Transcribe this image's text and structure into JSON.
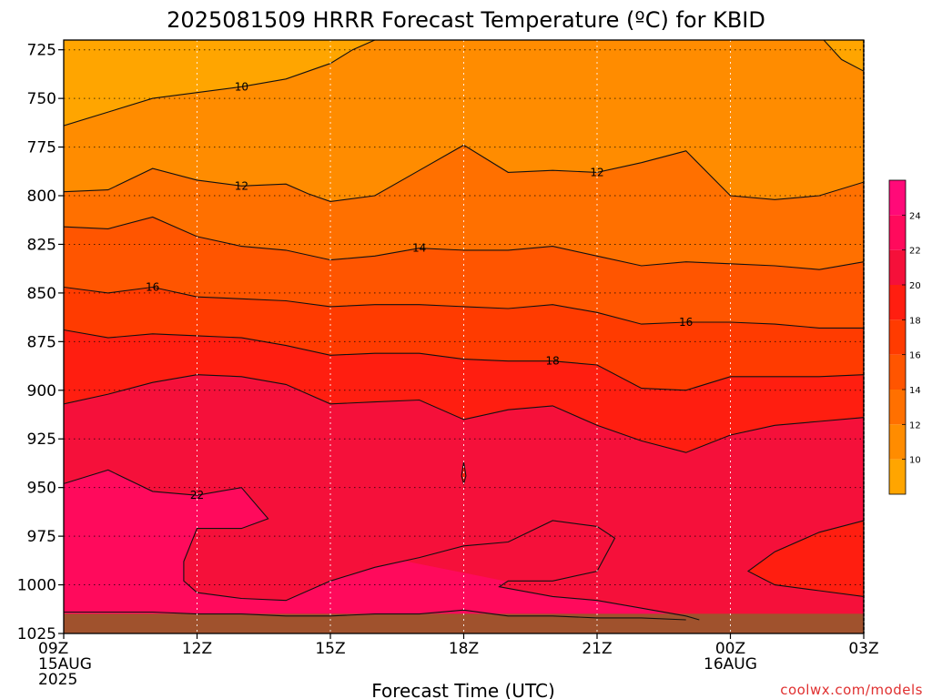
{
  "title": "2025081509 HRRR Forecast Temperature (ºC) for KBID",
  "credit": "coolwx.com/models",
  "chart_data": {
    "type": "heatmap",
    "title": "2025081509 HRRR Forecast Temperature (ºC) for KBID",
    "xlabel": "Forecast Time (UTC)",
    "ylabel": "",
    "x_axis": {
      "unit": "hours since 2025-08-15 09Z",
      "range": [
        0,
        18
      ],
      "ticks": [
        {
          "x": 0,
          "lines": [
            "09Z",
            "15AUG",
            "2025"
          ]
        },
        {
          "x": 3,
          "lines": [
            "12Z"
          ]
        },
        {
          "x": 6,
          "lines": [
            "15Z"
          ]
        },
        {
          "x": 9,
          "lines": [
            "18Z"
          ]
        },
        {
          "x": 12,
          "lines": [
            "21Z"
          ]
        },
        {
          "x": 15,
          "lines": [
            "00Z",
            "16AUG"
          ]
        },
        {
          "x": 18,
          "lines": [
            "03Z"
          ]
        }
      ]
    },
    "y_axis": {
      "unit": "hPa",
      "range": [
        1025,
        720
      ],
      "ticks": [
        725,
        750,
        775,
        800,
        825,
        850,
        875,
        900,
        925,
        950,
        975,
        1000,
        1025
      ]
    },
    "grid": true,
    "legend": "right",
    "colorbar": {
      "labels": [
        10,
        12,
        14,
        16,
        18,
        20,
        22,
        24
      ],
      "bands": [
        {
          "min": 8,
          "max": 10,
          "color": "#ffa500"
        },
        {
          "min": 10,
          "max": 12,
          "color": "#ff8c00"
        },
        {
          "min": 12,
          "max": 14,
          "color": "#ff7000"
        },
        {
          "min": 14,
          "max": 16,
          "color": "#ff5500"
        },
        {
          "min": 16,
          "max": 18,
          "color": "#ff3b00"
        },
        {
          "min": 18,
          "max": 20,
          "color": "#ff1e10"
        },
        {
          "min": 20,
          "max": 22,
          "color": "#f5103a"
        },
        {
          "min": 22,
          "max": 24,
          "color": "#ff0a5c"
        },
        {
          "min": 24,
          "max": 26,
          "color": "#ff0a78"
        }
      ]
    },
    "band_colors": {
      "below_10": "#ffa500",
      "10_12": "#ff8c00",
      "12_14": "#ff7000",
      "14_16": "#ff5500",
      "16_18": "#ff3b00",
      "18_20": "#ff1e10",
      "20_22": "#f5103a",
      "22_24": "#ff0a5c",
      "ground": "#a0522d"
    },
    "contours": [
      {
        "level": 10,
        "points": [
          [
            0,
            764
          ],
          [
            1,
            757
          ],
          [
            2,
            750
          ],
          [
            3,
            747
          ],
          [
            4,
            744
          ],
          [
            5,
            740
          ],
          [
            6,
            732
          ],
          [
            6.5,
            725
          ],
          [
            7,
            720
          ]
        ]
      },
      {
        "level": 10,
        "points": [
          [
            17.1,
            720
          ],
          [
            17.5,
            730
          ],
          [
            18,
            736
          ]
        ]
      },
      {
        "level": 12,
        "points": [
          [
            0,
            798
          ],
          [
            1,
            797
          ],
          [
            2,
            786
          ],
          [
            3,
            792
          ],
          [
            4,
            795
          ],
          [
            5,
            794
          ],
          [
            5.5,
            799
          ],
          [
            6,
            803
          ],
          [
            7,
            800
          ],
          [
            8,
            787
          ],
          [
            9,
            774
          ],
          [
            10,
            788
          ],
          [
            11,
            787
          ],
          [
            12,
            788
          ],
          [
            13,
            783
          ],
          [
            14,
            777
          ],
          [
            15,
            800
          ],
          [
            16,
            802
          ],
          [
            17,
            800
          ],
          [
            18,
            793
          ]
        ]
      },
      {
        "level": 14,
        "points": [
          [
            0,
            816
          ],
          [
            1,
            817
          ],
          [
            2,
            811
          ],
          [
            3,
            821
          ],
          [
            4,
            826
          ],
          [
            5,
            828
          ],
          [
            6,
            833
          ],
          [
            7,
            831
          ],
          [
            8,
            827
          ],
          [
            9,
            828
          ],
          [
            10,
            828
          ],
          [
            11,
            826
          ],
          [
            12,
            831
          ],
          [
            13,
            836
          ],
          [
            14,
            834
          ],
          [
            15,
            835
          ],
          [
            16,
            836
          ],
          [
            17,
            838
          ],
          [
            18,
            834
          ]
        ]
      },
      {
        "level": 16,
        "points": [
          [
            0,
            847
          ],
          [
            1,
            850
          ],
          [
            2,
            847
          ],
          [
            3,
            852
          ],
          [
            4,
            853
          ],
          [
            5,
            854
          ],
          [
            6,
            857
          ],
          [
            7,
            856
          ],
          [
            8,
            856
          ],
          [
            9,
            857
          ],
          [
            10,
            858
          ],
          [
            11,
            856
          ],
          [
            12,
            860
          ],
          [
            13,
            866
          ],
          [
            14,
            865
          ],
          [
            15,
            865
          ],
          [
            16,
            866
          ],
          [
            17,
            868
          ],
          [
            18,
            868
          ]
        ]
      },
      {
        "level": 18,
        "points": [
          [
            0,
            869
          ],
          [
            1,
            873
          ],
          [
            2,
            871
          ],
          [
            3,
            872
          ],
          [
            4,
            873
          ],
          [
            5,
            877
          ],
          [
            6,
            882
          ],
          [
            7,
            881
          ],
          [
            8,
            881
          ],
          [
            9,
            884
          ],
          [
            10,
            885
          ],
          [
            11,
            885
          ],
          [
            12,
            887
          ],
          [
            13,
            899
          ],
          [
            14,
            900
          ],
          [
            15,
            893
          ],
          [
            16,
            893
          ],
          [
            17,
            893
          ],
          [
            18,
            892
          ]
        ]
      },
      {
        "level": 20,
        "points": [
          [
            0,
            907
          ],
          [
            1,
            902
          ],
          [
            2,
            896
          ],
          [
            3,
            892
          ],
          [
            4,
            893
          ],
          [
            5,
            897
          ],
          [
            6,
            907
          ],
          [
            7,
            906
          ],
          [
            8,
            905
          ],
          [
            9,
            915
          ],
          [
            10,
            910
          ],
          [
            11,
            908
          ],
          [
            12,
            918
          ],
          [
            13,
            926
          ],
          [
            14,
            932
          ],
          [
            15,
            923
          ],
          [
            16,
            918
          ],
          [
            17,
            916
          ],
          [
            18,
            914
          ]
        ]
      },
      {
        "level": 20,
        "points": [
          [
            8.95,
            944
          ],
          [
            9,
            937
          ],
          [
            9.05,
            944
          ],
          [
            9,
            948
          ],
          [
            8.95,
            944
          ]
        ]
      },
      {
        "level": 22,
        "points": [
          [
            0,
            948
          ],
          [
            1,
            941
          ],
          [
            2,
            952
          ],
          [
            3,
            954
          ],
          [
            4,
            950
          ],
          [
            4.6,
            966
          ],
          [
            4,
            971
          ],
          [
            3,
            971
          ],
          [
            2.7,
            988
          ],
          [
            2.7,
            998
          ],
          [
            3,
            1004
          ],
          [
            4,
            1007
          ],
          [
            5,
            1008
          ],
          [
            6,
            998
          ],
          [
            7,
            991
          ],
          [
            8,
            986
          ],
          [
            9,
            980
          ],
          [
            10,
            978
          ],
          [
            11,
            967
          ],
          [
            12,
            970
          ],
          [
            12.4,
            976
          ],
          [
            12,
            993
          ],
          [
            11,
            998
          ],
          [
            10,
            998
          ],
          [
            9.8,
            1001
          ],
          [
            11,
            1006
          ],
          [
            12,
            1008
          ],
          [
            13,
            1012
          ],
          [
            14,
            1016
          ],
          [
            14.3,
            1018
          ]
        ]
      },
      {
        "level": 22,
        "points": [
          [
            18,
            967
          ],
          [
            17,
            973
          ],
          [
            16,
            983
          ],
          [
            15.4,
            993
          ],
          [
            16,
            1000
          ],
          [
            17,
            1003
          ],
          [
            18,
            1006
          ]
        ]
      },
      {
        "level": 22,
        "points": [
          [
            0,
            1014
          ],
          [
            1,
            1014
          ],
          [
            2,
            1014
          ],
          [
            3,
            1015
          ],
          [
            4,
            1015
          ],
          [
            5,
            1016
          ],
          [
            6,
            1016
          ],
          [
            7,
            1015
          ],
          [
            8,
            1015
          ],
          [
            9,
            1013
          ],
          [
            10,
            1016
          ],
          [
            11,
            1016
          ],
          [
            12,
            1017
          ],
          [
            13,
            1017
          ],
          [
            14,
            1018
          ]
        ]
      }
    ],
    "contour_labels": [
      {
        "text": "10",
        "x": 4.0,
        "y": 744
      },
      {
        "text": "12",
        "x": 4.0,
        "y": 795
      },
      {
        "text": "12",
        "x": 12.0,
        "y": 788
      },
      {
        "text": "14",
        "x": 8.0,
        "y": 827
      },
      {
        "text": "16",
        "x": 2.0,
        "y": 847
      },
      {
        "text": "16",
        "x": 14.0,
        "y": 865
      },
      {
        "text": "18",
        "x": 11.0,
        "y": 885
      },
      {
        "text": "22",
        "x": 3.0,
        "y": 954
      }
    ]
  }
}
